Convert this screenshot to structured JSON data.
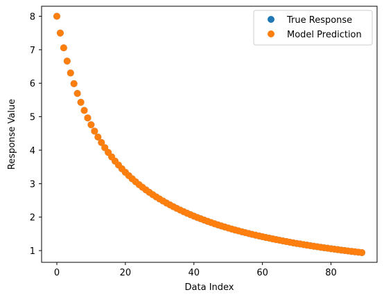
{
  "chart_data": {
    "type": "scatter",
    "title": "",
    "xlabel": "Data Index",
    "ylabel": "Response Value",
    "xlim": [
      -4.45,
      93.45
    ],
    "ylim": [
      0.65,
      8.3
    ],
    "xticks": [
      0,
      20,
      40,
      60,
      80
    ],
    "yticks": [
      1,
      2,
      3,
      4,
      5,
      6,
      7,
      8
    ],
    "grid": false,
    "legend": {
      "position": "top-right"
    },
    "x": {
      "start": 0,
      "end": 89,
      "step": 1
    },
    "y_model": "decay from 8.00 at x=0 to 0.94 at x=89",
    "series": [
      {
        "name": "True Response",
        "color": "#1f77b4"
      },
      {
        "name": "Model Prediction",
        "color": "#ff7f0e"
      }
    ]
  }
}
